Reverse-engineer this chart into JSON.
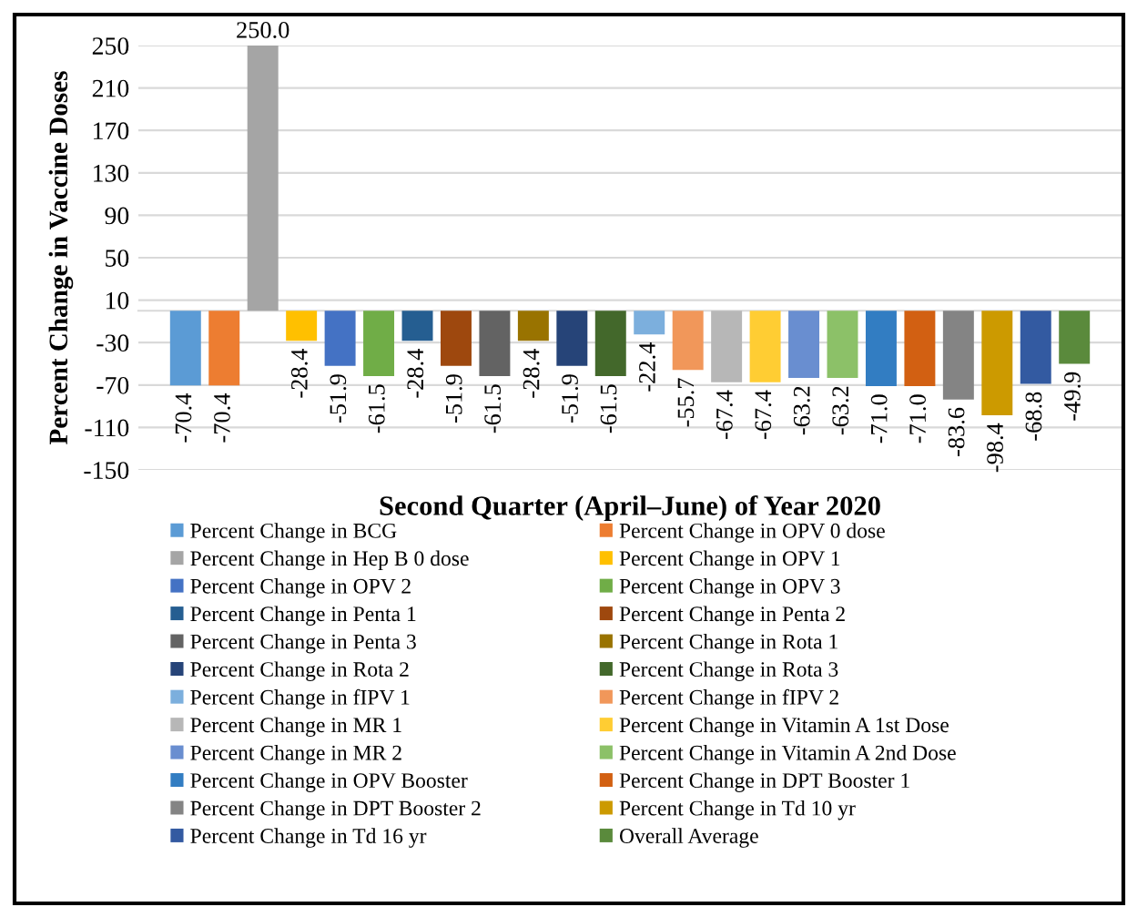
{
  "chart_data": {
    "type": "bar",
    "xlabel": "Second Quarter (April–June) of Year 2020",
    "ylabel": "Percent Change in Vaccine Doses",
    "categories": [
      null
    ],
    "ylim": [
      -150,
      250
    ],
    "yticks": [
      -150,
      -110,
      -70,
      -30,
      10,
      50,
      90,
      130,
      170,
      210,
      250
    ],
    "grid": "y",
    "legend": "bottom",
    "series": [
      {
        "name": "Percent Change in BCG",
        "color": "#5b9bd5",
        "values": [
          -70.4
        ],
        "value_labels": [
          "-70.4"
        ]
      },
      {
        "name": "Percent Change in OPV 0 dose",
        "color": "#ed7d31",
        "values": [
          -70.4
        ],
        "value_labels": [
          "-70.4"
        ]
      },
      {
        "name": "Percent Change in Hep B 0 dose",
        "color": "#a5a5a5",
        "values": [
          250.0
        ],
        "value_labels": [
          "250.0"
        ]
      },
      {
        "name": "Percent Change in OPV 1",
        "color": "#ffc000",
        "values": [
          -28.4
        ],
        "value_labels": [
          "-28.4"
        ]
      },
      {
        "name": "Percent Change in OPV 2",
        "color": "#4472c4",
        "values": [
          -51.9
        ],
        "value_labels": [
          "-51.9"
        ]
      },
      {
        "name": "Percent Change in OPV 3",
        "color": "#70ad47",
        "values": [
          -61.5
        ],
        "value_labels": [
          "-61.5"
        ]
      },
      {
        "name": "Percent Change in Penta 1",
        "color": "#255e91",
        "values": [
          -28.4
        ],
        "value_labels": [
          "-28.4"
        ]
      },
      {
        "name": "Percent Change in Penta 2",
        "color": "#9e480e",
        "values": [
          -51.9
        ],
        "value_labels": [
          "-51.9"
        ]
      },
      {
        "name": "Percent Change in Penta 3",
        "color": "#636363",
        "values": [
          -61.5
        ],
        "value_labels": [
          "-61.5"
        ]
      },
      {
        "name": "Percent Change in Rota 1",
        "color": "#997300",
        "values": [
          -28.4
        ],
        "value_labels": [
          "-28.4"
        ]
      },
      {
        "name": "Percent Change in Rota 2",
        "color": "#264478",
        "values": [
          -51.9
        ],
        "value_labels": [
          "-51.9"
        ]
      },
      {
        "name": "Percent Change in Rota 3",
        "color": "#43682b",
        "values": [
          -61.5
        ],
        "value_labels": [
          "-61.5"
        ]
      },
      {
        "name": "Percent Change in fIPV 1",
        "color": "#7cafdd",
        "values": [
          -22.4
        ],
        "value_labels": [
          "-22.4"
        ]
      },
      {
        "name": "Percent Change in fIPV 2",
        "color": "#f1975a",
        "values": [
          -55.7
        ],
        "value_labels": [
          "-55.7"
        ]
      },
      {
        "name": "Percent Change in MR 1",
        "color": "#b7b7b7",
        "values": [
          -67.4
        ],
        "value_labels": [
          "-67.4"
        ]
      },
      {
        "name": "Percent Change in Vitamin A 1st Dose",
        "color": "#ffcd33",
        "values": [
          -67.4
        ],
        "value_labels": [
          "-67.4"
        ]
      },
      {
        "name": "Percent Change in MR 2",
        "color": "#698ed0",
        "values": [
          -63.2
        ],
        "value_labels": [
          "-63.2"
        ]
      },
      {
        "name": "Percent Change in Vitamin A 2nd Dose",
        "color": "#8cc168",
        "values": [
          -63.2
        ],
        "value_labels": [
          "-63.2"
        ]
      },
      {
        "name": "Percent Change in OPV Booster",
        "color": "#327dc2",
        "values": [
          -71.0
        ],
        "value_labels": [
          "-71.0"
        ]
      },
      {
        "name": "Percent Change in DPT Booster 1",
        "color": "#d26012",
        "values": [
          -71.0
        ],
        "value_labels": [
          "-71.0"
        ]
      },
      {
        "name": "Percent Change in DPT Booster 2",
        "color": "#848484",
        "values": [
          -83.6
        ],
        "value_labels": [
          "-83.6"
        ]
      },
      {
        "name": "Percent Change in Td 10 yr",
        "color": "#cc9a00",
        "values": [
          -98.4
        ],
        "value_labels": [
          "-98.4"
        ]
      },
      {
        "name": "Percent Change in Td 16 yr",
        "color": "#335aa1",
        "values": [
          -68.8
        ],
        "value_labels": [
          "-68.8"
        ]
      },
      {
        "name": "Overall Average",
        "color": "#5a8a3c",
        "values": [
          -49.9
        ],
        "value_labels": [
          "-49.9"
        ]
      }
    ]
  }
}
